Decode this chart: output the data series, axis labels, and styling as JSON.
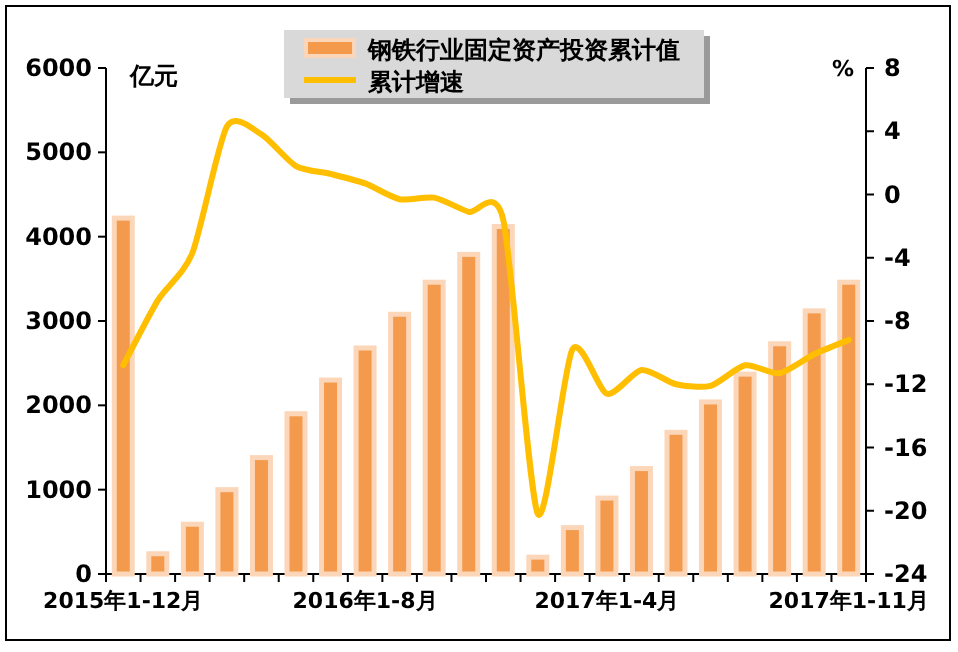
{
  "chart_data": {
    "type": "bar",
    "ylabel": "亿元",
    "y2label": "%",
    "categories": [
      "2015年1-12月",
      null,
      null,
      null,
      null,
      null,
      null,
      "2016年1-8月",
      null,
      null,
      null,
      null,
      null,
      null,
      "2017年1-4月",
      null,
      null,
      null,
      null,
      null,
      null,
      "2017年1-11月"
    ],
    "series": [
      {
        "name": "钢铁行业固定资产投资累计值",
        "color": "#f39a4c",
        "values": [
          4220,
          240,
          590,
          1000,
          1380,
          1900,
          2300,
          2680,
          3080,
          3460,
          3790,
          4120,
          200,
          550,
          900,
          1250,
          1680,
          2040,
          2370,
          2730,
          3120,
          3460
        ]
      },
      {
        "name": "累计增速",
        "type": "line",
        "axis": "y2",
        "color": "#ffbe00",
        "values": [
          -10.8,
          -6.7,
          -3.7,
          4.3,
          3.8,
          1.8,
          1.3,
          0.7,
          -0.3,
          -0.2,
          -1.1,
          -1.6,
          -20.2,
          -9.8,
          -12.6,
          -11.1,
          -12.0,
          -12.1,
          -10.8,
          -11.3,
          -10.1,
          -9.2
        ]
      }
    ],
    "ylim": [
      0,
      6000
    ],
    "yticks": [
      0,
      1000,
      2000,
      3000,
      4000,
      5000,
      6000
    ],
    "y2lim": [
      -24,
      8
    ],
    "y2ticks": [
      -24,
      -20,
      -16,
      -12,
      -8,
      -4,
      0,
      4,
      8
    ],
    "grid": false,
    "legend": "top"
  }
}
